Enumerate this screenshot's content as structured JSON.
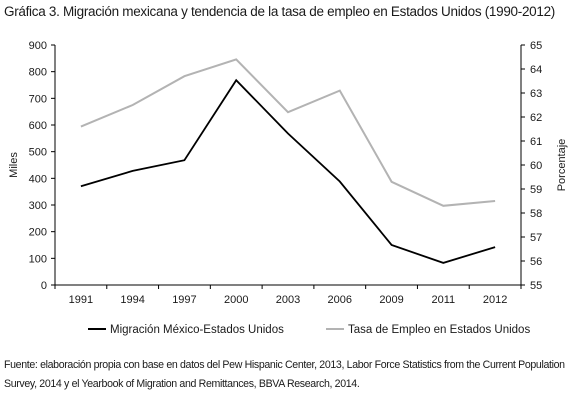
{
  "chart_data": {
    "type": "line",
    "title": "Gráfica 3. Migración mexicana y tendencia de la tasa de empleo en Estados Unidos (1990-2012)",
    "categories": [
      "1991",
      "1994",
      "1997",
      "2000",
      "2003",
      "2006",
      "2009",
      "2011",
      "2012"
    ],
    "y_left": {
      "label": "Miles",
      "min": 0,
      "max": 900,
      "step": 100
    },
    "y_right": {
      "label": "Porcentaje",
      "min": 55,
      "max": 65,
      "step": 1
    },
    "grid": false,
    "legend_position": "bottom",
    "series": [
      {
        "name": "Migración México-Estados Unidos",
        "axis": "left",
        "color": "#000000",
        "values": [
          370,
          428,
          468,
          768,
          568,
          388,
          150,
          83,
          142
        ]
      },
      {
        "name": "Tasa de Empleo en Estados Unidos",
        "axis": "right",
        "color": "#b3b3b3",
        "values": [
          61.6,
          62.5,
          63.7,
          64.4,
          62.2,
          63.1,
          59.3,
          58.3,
          58.5
        ]
      }
    ]
  },
  "source_note": "Fuente: elaboración propia con base en datos del Pew Hispanic Center, 2013, Labor Force Statistics from the Current Population Survey, 2014 y el Yearbook of Migration and Remittances, BBVA Research, 2014."
}
